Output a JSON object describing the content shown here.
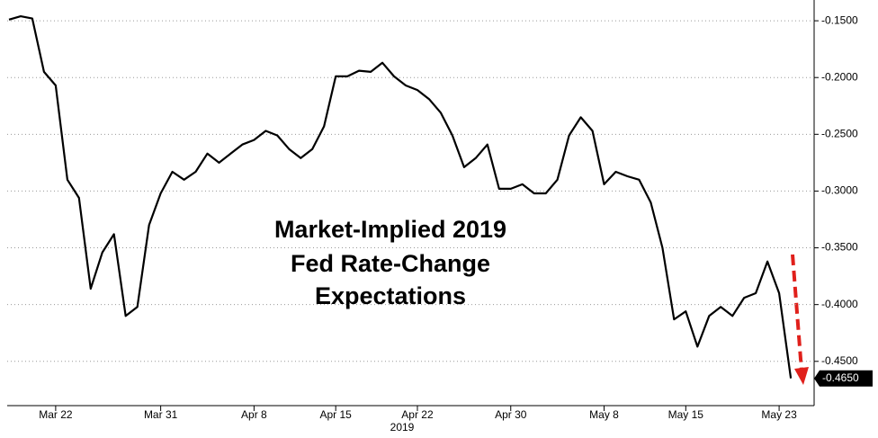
{
  "chart_data": {
    "type": "line",
    "title_lines": [
      "Market-Implied 2019",
      "Fed Rate-Change",
      "Expectations"
    ],
    "xlabel": "2019",
    "x": [
      "2019-03-18",
      "2019-03-19",
      "2019-03-20",
      "2019-03-21",
      "2019-03-22",
      "2019-03-23",
      "2019-03-24",
      "2019-03-25",
      "2019-03-26",
      "2019-03-27",
      "2019-03-28",
      "2019-03-29",
      "2019-03-30",
      "2019-03-31",
      "2019-04-01",
      "2019-04-02",
      "2019-04-03",
      "2019-04-04",
      "2019-04-05",
      "2019-04-06",
      "2019-04-07",
      "2019-04-08",
      "2019-04-09",
      "2019-04-10",
      "2019-04-11",
      "2019-04-12",
      "2019-04-13",
      "2019-04-14",
      "2019-04-15",
      "2019-04-16",
      "2019-04-17",
      "2019-04-18",
      "2019-04-19",
      "2019-04-20",
      "2019-04-21",
      "2019-04-22",
      "2019-04-23",
      "2019-04-24",
      "2019-04-25",
      "2019-04-26",
      "2019-04-27",
      "2019-04-28",
      "2019-04-29",
      "2019-04-30",
      "2019-05-01",
      "2019-05-02",
      "2019-05-03",
      "2019-05-04",
      "2019-05-05",
      "2019-05-06",
      "2019-05-07",
      "2019-05-08",
      "2019-05-09",
      "2019-05-10",
      "2019-05-11",
      "2019-05-12",
      "2019-05-13",
      "2019-05-14",
      "2019-05-15",
      "2019-05-16",
      "2019-05-17",
      "2019-05-18",
      "2019-05-19",
      "2019-05-20",
      "2019-05-21",
      "2019-05-22",
      "2019-05-23",
      "2019-05-24"
    ],
    "series": [
      {
        "color": "#000000",
        "values": [
          -0.149,
          -0.146,
          -0.148,
          -0.195,
          -0.207,
          -0.29,
          -0.306,
          -0.386,
          -0.354,
          -0.338,
          -0.41,
          -0.402,
          -0.33,
          -0.302,
          -0.283,
          -0.29,
          -0.283,
          -0.267,
          -0.275,
          -0.267,
          -0.259,
          -0.255,
          -0.247,
          -0.251,
          -0.263,
          -0.271,
          -0.263,
          -0.243,
          -0.199,
          -0.199,
          -0.194,
          -0.195,
          -0.187,
          -0.199,
          -0.207,
          -0.211,
          -0.219,
          -0.231,
          -0.251,
          -0.279,
          -0.271,
          -0.259,
          -0.298,
          -0.298,
          -0.294,
          -0.302,
          -0.302,
          -0.29,
          -0.251,
          -0.235,
          -0.247,
          -0.294,
          -0.283,
          -0.287,
          -0.29,
          -0.31,
          -0.35,
          -0.413,
          -0.406,
          -0.437,
          -0.41,
          -0.402,
          -0.41,
          -0.394,
          -0.39,
          -0.362,
          -0.39,
          -0.465
        ],
        "last_value_label": "-0.4650"
      }
    ],
    "xlim": [
      "2019-03-18",
      "2019-05-26"
    ],
    "xticks": [
      {
        "value": "2019-03-22",
        "label": "Mar 22"
      },
      {
        "value": "2019-03-31",
        "label": "Mar 31"
      },
      {
        "value": "2019-04-08",
        "label": "Apr 8"
      },
      {
        "value": "2019-04-15",
        "label": "Apr 15"
      },
      {
        "value": "2019-04-22",
        "label": "Apr 22"
      },
      {
        "value": "2019-04-30",
        "label": "Apr 30"
      },
      {
        "value": "2019-05-08",
        "label": "May 8"
      },
      {
        "value": "2019-05-15",
        "label": "May 15"
      },
      {
        "value": "2019-05-23",
        "label": "May 23"
      }
    ],
    "ylim": [
      -0.489,
      -0.1317
    ],
    "yticks": [
      {
        "value": -0.15,
        "label": "-0.1500"
      },
      {
        "value": -0.2,
        "label": "-0.2000"
      },
      {
        "value": -0.25,
        "label": "-0.2500"
      },
      {
        "value": -0.3,
        "label": "-0.3000"
      },
      {
        "value": -0.35,
        "label": "-0.3500"
      },
      {
        "value": -0.4,
        "label": "-0.4000"
      },
      {
        "value": -0.45,
        "label": "-0.4500"
      }
    ],
    "grid": true
  }
}
